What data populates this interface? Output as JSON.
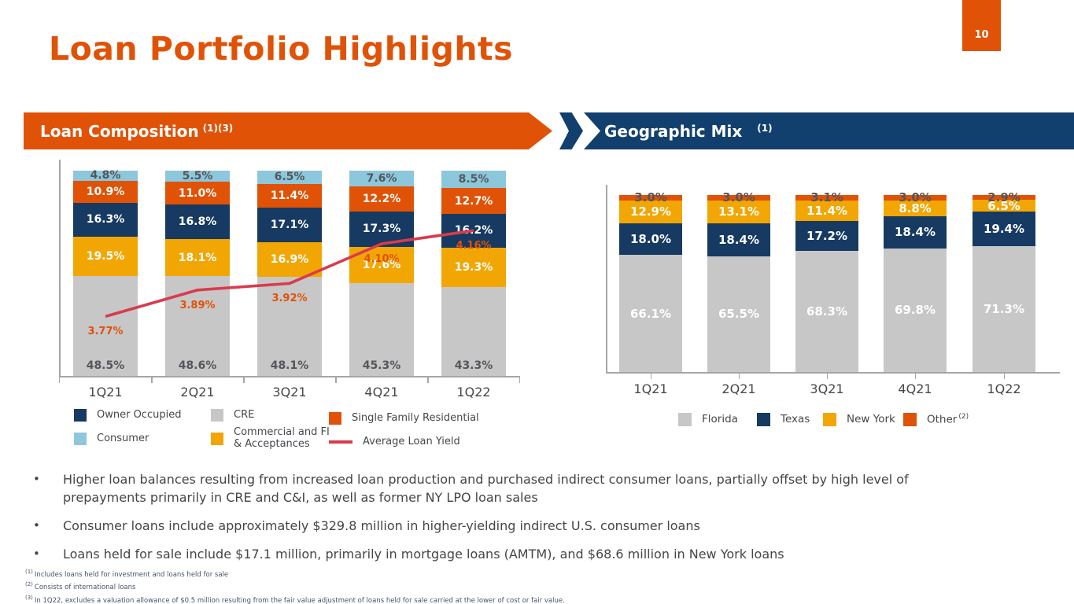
{
  "slide": {
    "title": "Loan Portfolio Highlights",
    "page_number": "10"
  },
  "sections": {
    "loan_composition": {
      "title": "Loan Composition",
      "superscript": "(1)(3)"
    },
    "geographic_mix": {
      "title": "Geographic Mix",
      "superscript": "(1)"
    }
  },
  "colors": {
    "orange": "#E05206",
    "navy_banner": "#12406E",
    "navy": "#163A61",
    "gold": "#F2A604",
    "lightblue": "#8CC7DC",
    "gray": "#C7C7C7",
    "red_line": "#D93B4C",
    "label_dark": "#54575B",
    "axis": "#A6A6A6",
    "footnote": "#44546A"
  },
  "chart_data": [
    {
      "id": "loan_composition",
      "type": "bar",
      "stacked": true,
      "title": "Loan Composition (1)(3)",
      "unit": "%",
      "ylim": [
        0,
        100
      ],
      "grid": false,
      "legend_position": "bottom",
      "categories": [
        "1Q21",
        "2Q21",
        "3Q21",
        "4Q21",
        "1Q22"
      ],
      "series": [
        {
          "name": "CRE",
          "color": "gray",
          "label_style": "dark-bottom",
          "values": [
            48.5,
            48.6,
            48.1,
            45.3,
            43.3
          ]
        },
        {
          "name": "Commercial and FI & Acceptances",
          "color": "gold",
          "label_style": "light-center",
          "values": [
            19.5,
            18.1,
            16.9,
            17.6,
            19.3
          ]
        },
        {
          "name": "Owner Occupied",
          "color": "navy",
          "label_style": "light-center",
          "values": [
            16.3,
            16.8,
            17.1,
            17.3,
            16.2
          ]
        },
        {
          "name": "Single Family Residential",
          "color": "orange",
          "label_style": "light-center",
          "values": [
            10.9,
            11.0,
            11.4,
            12.2,
            12.7
          ]
        },
        {
          "name": "Consumer",
          "color": "lightblue",
          "label_style": "dark-center",
          "values": [
            4.8,
            5.5,
            6.5,
            7.6,
            8.5
          ]
        }
      ],
      "line_series": {
        "name": "Average Loan Yield",
        "color": "red_line",
        "values": [
          3.77,
          3.89,
          3.92,
          4.1,
          4.16
        ],
        "labels": [
          "3.77%",
          "3.89%",
          "3.92%",
          "4.10%",
          "4.16%"
        ]
      }
    },
    {
      "id": "geographic_mix",
      "type": "bar",
      "stacked": true,
      "title": "Geographic Mix (1)",
      "unit": "%",
      "ylim": [
        0,
        100
      ],
      "grid": false,
      "legend_position": "bottom",
      "categories": [
        "1Q21",
        "2Q21",
        "3Q21",
        "4Q21",
        "1Q22"
      ],
      "series": [
        {
          "name": "Florida",
          "color": "gray",
          "label_style": "light-center",
          "values": [
            66.1,
            65.5,
            68.3,
            69.8,
            71.3
          ]
        },
        {
          "name": "Texas",
          "color": "navy",
          "label_style": "light-center",
          "values": [
            18.0,
            18.4,
            17.2,
            18.4,
            19.4
          ]
        },
        {
          "name": "New York",
          "color": "gold",
          "label_style": "light-center",
          "values": [
            12.9,
            13.1,
            11.4,
            8.8,
            6.5
          ]
        },
        {
          "name": "Other",
          "color": "orange",
          "label_style": "dark-center",
          "values": [
            3.0,
            3.0,
            3.1,
            3.0,
            2.9
          ]
        }
      ]
    }
  ],
  "legends": {
    "loan_composition": [
      {
        "label": "Owner Occupied",
        "color": "navy",
        "type": "swatch"
      },
      {
        "label": "CRE",
        "color": "gray",
        "type": "swatch"
      },
      {
        "label": "Single Family Residential",
        "color": "orange",
        "type": "swatch"
      },
      {
        "label": "Consumer",
        "color": "lightblue",
        "type": "swatch"
      },
      {
        "label": "Commercial and FI & Acceptances",
        "color": "gold",
        "type": "swatch"
      },
      {
        "label": "Average Loan Yield",
        "color": "red_line",
        "type": "line"
      }
    ],
    "geographic_mix": [
      {
        "label": "Florida",
        "color": "gray",
        "type": "swatch"
      },
      {
        "label": "Texas",
        "color": "navy",
        "type": "swatch"
      },
      {
        "label": "New York",
        "color": "gold",
        "type": "swatch"
      },
      {
        "label": "Other",
        "superscript": "(2)",
        "color": "orange",
        "type": "swatch"
      }
    ]
  },
  "bullets": [
    "Higher loan balances resulting from increased loan production and purchased indirect consumer loans, partially offset by high level of prepayments primarily in CRE and C&I, as well as former NY LPO loan sales",
    "Consumer loans include approximately $329.8 million in higher-yielding indirect U.S. consumer loans",
    "Loans held for sale include $17.1 million, primarily in mortgage loans (AMTM), and $68.6 million in New York loans"
  ],
  "footnotes": [
    {
      "sup": "(1)",
      "text": "Includes loans held for investment and loans held for sale"
    },
    {
      "sup": "(2)",
      "text": "Consists of international loans"
    },
    {
      "sup": "(3)",
      "text": "In 1Q22, excludes a valuation allowance of $0.5 million resulting from the fair value adjustment of loans held for sale carried at the lower of cost or fair value."
    }
  ]
}
